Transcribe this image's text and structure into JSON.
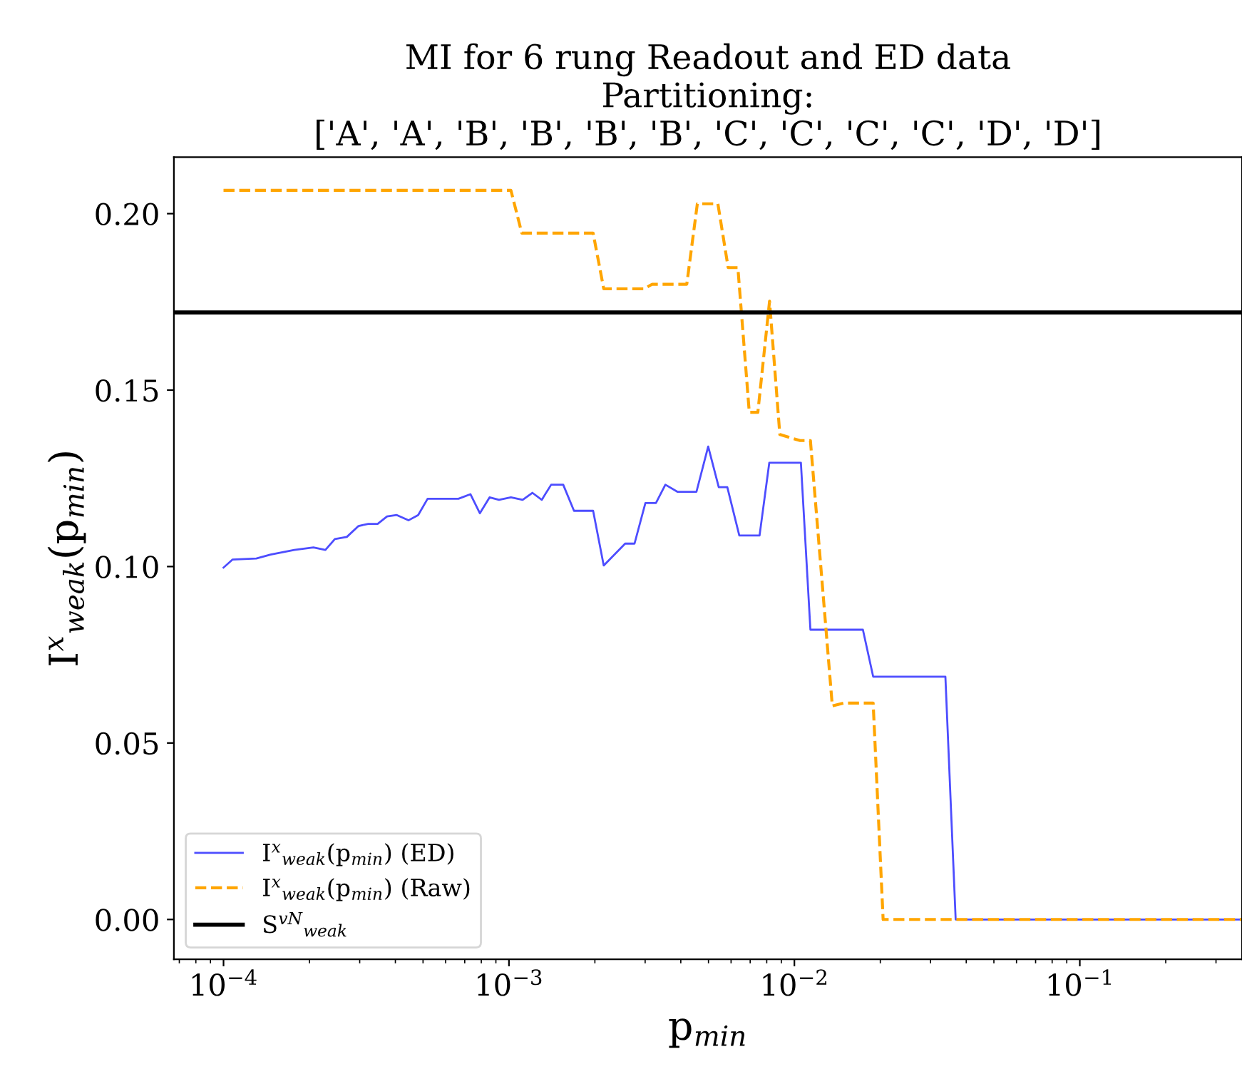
{
  "chart_data": {
    "type": "line",
    "title": "MI for 6 rung Readout and ED data\nPartitioning:\n['A', 'A', 'B', 'B', 'B', 'B', 'C', 'C', 'C', 'C', 'D', 'D']",
    "xlabel": "p$_{min}$",
    "ylabel": "I$^{x}$$_{weak}$(p$_{min}$)",
    "log": "x",
    "grid": false,
    "legend": "bottom left",
    "xlim": [
      6.7e-05,
      0.37
    ],
    "xticks": [
      {
        "value": 0.0001,
        "label": "10$^{−4}$"
      },
      {
        "value": 0.001,
        "label": "10$^{−3}$"
      },
      {
        "value": 0.01,
        "label": "10$^{−2}$"
      },
      {
        "value": 0.1,
        "label": "10$^{−1}$"
      }
    ],
    "ylim": [
      -0.0113,
      0.216
    ],
    "yticks": [
      {
        "value": 0,
        "label": "0.00"
      },
      {
        "value": 0.05,
        "label": "0.05"
      },
      {
        "value": 0.1,
        "label": "0.10"
      },
      {
        "value": 0.15,
        "label": "0.15"
      },
      {
        "value": 0.2,
        "label": "0.20"
      }
    ],
    "series": [
      {
        "name": "I$^{x}$$_{weak}$(p$_{min}$) (ED)",
        "color": "#4d4dff",
        "line_style": "solid",
        "x": [
          0.0001,
          0.0001076,
          0.0001303,
          0.0001462,
          0.000177,
          0.0002065,
          0.0002275,
          0.0002455,
          0.0002704,
          0.0002972,
          0.0003214,
          0.0003467,
          0.0003741,
          0.0004046,
          0.0004446,
          0.0004808,
          0.0005188,
          0.0006653,
          0.0007328,
          0.0007907,
          0.0008551,
          0.0009226,
          0.001016,
          0.001117,
          0.001208,
          0.001303,
          0.001406,
          0.001549,
          0.00169,
          0.001972,
          0.002148,
          0.002553,
          0.002754,
          0.003006,
          0.003273,
          0.003532,
          0.00389,
          0.004539,
          0.004989,
          0.005433,
          0.005821,
          0.006412,
          0.007551,
          0.008166,
          0.01054,
          0.01138,
          0.01738,
          0.01888,
          0.03381,
          0.03673,
          0.37
        ],
        "values": [
          0.0997,
          0.102,
          0.1023,
          0.1034,
          0.1047,
          0.1054,
          0.1047,
          0.1078,
          0.1084,
          0.1115,
          0.1121,
          0.1121,
          0.1142,
          0.1146,
          0.1131,
          0.1146,
          0.1192,
          0.1192,
          0.1205,
          0.1151,
          0.1196,
          0.1189,
          0.1196,
          0.1189,
          0.1209,
          0.1189,
          0.1232,
          0.1232,
          0.1158,
          0.1158,
          0.1003,
          0.1065,
          0.1065,
          0.118,
          0.118,
          0.1232,
          0.1212,
          0.1212,
          0.134,
          0.1225,
          0.1225,
          0.1088,
          0.1088,
          0.1294,
          0.1294,
          0.0821,
          0.0821,
          0.0688,
          0.0688,
          0,
          0
        ]
      },
      {
        "name": "I$^{x}$$_{weak}$(p$_{min}$) (Raw)",
        "color": "#ffa500",
        "line_style": "dashed",
        "x": [
          0.0001,
          0.001016,
          0.001109,
          0.001972,
          0.002148,
          0.002972,
          0.003177,
          0.004198,
          0.004571,
          0.005395,
          0.005861,
          0.006339,
          0.00695,
          0.007447,
          0.008185,
          0.008892,
          0.01047,
          0.01138,
          0.01358,
          0.01486,
          0.01888,
          0.02046,
          0.37
        ],
        "values": [
          0.2066,
          0.2066,
          0.1945,
          0.1945,
          0.1787,
          0.1787,
          0.18,
          0.18,
          0.2028,
          0.2028,
          0.1847,
          0.1847,
          0.1437,
          0.1437,
          0.1752,
          0.1374,
          0.1357,
          0.1357,
          0.0605,
          0.0613,
          0.0613,
          0,
          0
        ]
      }
    ],
    "ref_lines": [
      {
        "axis": "y",
        "value": 0.172,
        "label": "S$^{vN}$$_{weak}$",
        "color": "#000000",
        "line_style": "solid"
      }
    ]
  }
}
